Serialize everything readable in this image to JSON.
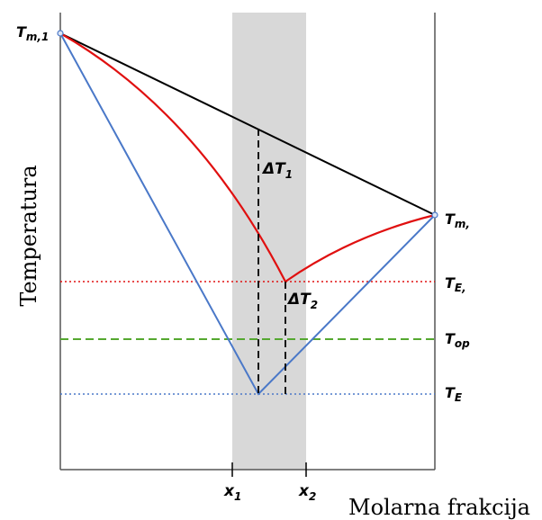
{
  "axes": {
    "y_title": "Temperatura",
    "x_title": "Molarna frakcija"
  },
  "labels": {
    "tm1": {
      "main": "T",
      "sub": "m,1"
    },
    "tm2": {
      "main": "T",
      "sub": "m,"
    },
    "te_red": {
      "main": "T",
      "sub": "E,"
    },
    "top": {
      "main": "T",
      "sub": "op"
    },
    "te": {
      "main": "T",
      "sub": "E"
    },
    "dt1": {
      "main": "ΔT",
      "sub": "1"
    },
    "dt2": {
      "main": "ΔT",
      "sub": "2"
    },
    "x1": {
      "main": "x",
      "sub": "1"
    },
    "x2": {
      "main": "x",
      "sub": "2"
    }
  },
  "colors": {
    "ideal_line": "#000000",
    "red_curve": "#e01010",
    "blue_curve": "#4a78c8",
    "red_dotted": "#e01010",
    "green_dashed": "#55a830",
    "blue_dotted": "#4a78c8",
    "shaded_band": "#d8d8d8"
  }
}
